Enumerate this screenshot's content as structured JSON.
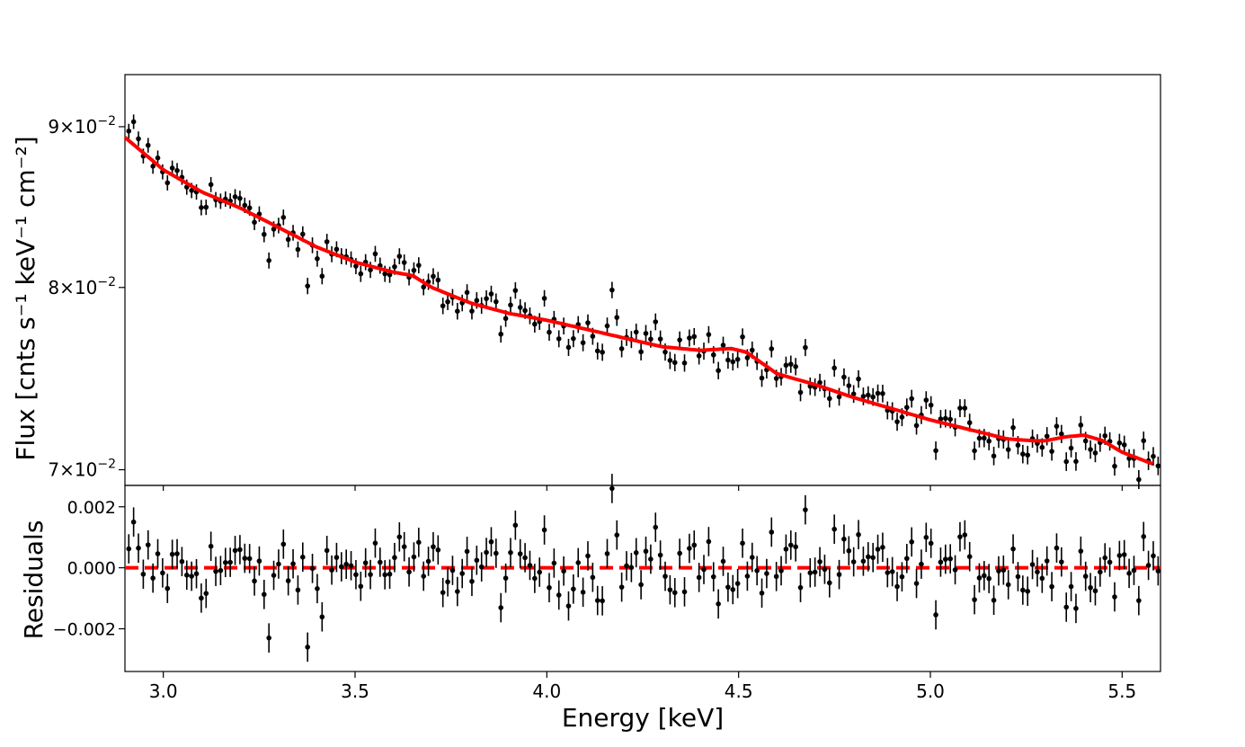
{
  "chart_data": [
    {
      "type": "scatter",
      "panel": "top",
      "title": "",
      "ylabel": "Flux [cnts s⁻¹ keV⁻¹ cm⁻²]",
      "xlabel": "",
      "xlim": [
        2.9,
        5.6
      ],
      "ylim": [
        0.0692,
        0.0935
      ],
      "yscale": "log",
      "yticks": [
        {
          "value": 0.07,
          "mant": "7",
          "exp": "−2"
        },
        {
          "value": 0.08,
          "mant": "8",
          "exp": "−2"
        },
        {
          "value": 0.09,
          "mant": "9",
          "exp": "−2"
        }
      ],
      "model_color": "#ff0000",
      "point_color": "#000000",
      "series": [
        {
          "name": "data",
          "kind": "points_with_errorbars",
          "x_start": 2.91,
          "x_step": 0.0126,
          "n": 214,
          "approx_yerr": 0.00048
        },
        {
          "name": "model",
          "kind": "line",
          "x": [
            2.9,
            3.0,
            3.1,
            3.2,
            3.3,
            3.4,
            3.5,
            3.6,
            3.65,
            3.7,
            3.8,
            3.9,
            4.0,
            4.1,
            4.2,
            4.3,
            4.35,
            4.4,
            4.48,
            4.52,
            4.6,
            4.7,
            4.8,
            4.9,
            5.0,
            5.1,
            5.2,
            5.27,
            5.3,
            5.35,
            5.4,
            5.45,
            5.5,
            5.58
          ],
          "y": [
            0.0893,
            0.0872,
            0.0858,
            0.0848,
            0.0836,
            0.0824,
            0.0815,
            0.0809,
            0.0807,
            0.08,
            0.0791,
            0.0785,
            0.0781,
            0.0776,
            0.0771,
            0.0766,
            0.0765,
            0.0764,
            0.0765,
            0.0763,
            0.0751,
            0.0745,
            0.0738,
            0.0732,
            0.0726,
            0.0721,
            0.0716,
            0.0715,
            0.0715,
            0.0717,
            0.0718,
            0.0715,
            0.0709,
            0.0703
          ]
        }
      ]
    },
    {
      "type": "scatter",
      "panel": "bottom",
      "title": "",
      "xlabel": "Energy [keV]",
      "ylabel": "Residuals",
      "xlim": [
        2.9,
        5.6
      ],
      "ylim": [
        -0.0034,
        0.0027
      ],
      "xticks": [
        "3.0",
        "3.5",
        "4.0",
        "4.5",
        "5.0",
        "5.5"
      ],
      "xtick_values": [
        3.0,
        3.5,
        4.0,
        4.5,
        5.0,
        5.5
      ],
      "yticks": [
        "−0.002",
        "0.000",
        "0.002"
      ],
      "ytick_values": [
        -0.002,
        0.0,
        0.002
      ],
      "zero_line": {
        "value": 0.0,
        "style": "dashed",
        "color": "#ff0000"
      },
      "series": [
        {
          "name": "residuals",
          "kind": "points_with_errorbars",
          "x_start": 2.91,
          "x_step": 0.0126,
          "n": 214,
          "yerr": 0.00048
        }
      ]
    }
  ]
}
